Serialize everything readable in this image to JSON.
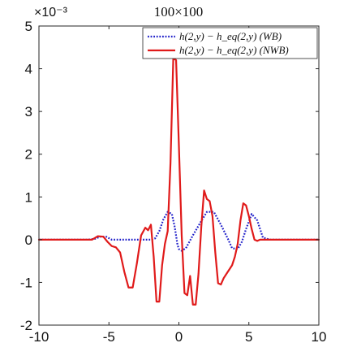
{
  "chart_data": {
    "type": "line",
    "title": "100×100",
    "xlabel": "",
    "ylabel": "",
    "y_exponent_label": "×10⁻³",
    "xlim": [
      -10,
      10
    ],
    "ylim": [
      -2,
      5
    ],
    "x_ticks": [
      -10,
      -5,
      0,
      5,
      10
    ],
    "y_ticks": [
      -2,
      -1,
      0,
      1,
      2,
      3,
      4,
      5
    ],
    "x_tick_labels": [
      "-10",
      "-5",
      "0",
      "5",
      "10"
    ],
    "y_tick_labels": [
      "-2",
      "-1",
      "0",
      "1",
      "2",
      "3",
      "4",
      "5"
    ],
    "grid": false,
    "legend_position": "top-right",
    "series": [
      {
        "name": "h(2,y) − h_eq(2,y) (WB)",
        "color": "#1f1fc9",
        "style": "dotted",
        "x": [
          -10,
          -6.5,
          -6,
          -5.6,
          -5.2,
          -4.8,
          -2.0,
          -1.7,
          -1.4,
          -1.1,
          -0.8,
          -0.5,
          -0.3,
          -0.1,
          0.0,
          0.2,
          0.5,
          1.0,
          1.5,
          2.0,
          2.5,
          3.0,
          3.5,
          3.8,
          4.2,
          4.5,
          4.8,
          5.2,
          5.6,
          6.0,
          6.5,
          10
        ],
        "y": [
          0,
          0,
          0.02,
          0.07,
          0.07,
          0.0,
          0.0,
          0.03,
          0.2,
          0.48,
          0.65,
          0.6,
          0.3,
          -0.12,
          -0.22,
          -0.26,
          -0.2,
          0.1,
          0.38,
          0.65,
          0.65,
          0.35,
          0.02,
          -0.2,
          -0.22,
          -0.05,
          0.25,
          0.6,
          0.45,
          0.05,
          0.0,
          0
        ]
      },
      {
        "name": "h(2,y) − h_eq(2,y) (NWB)",
        "color": "#e01a1a",
        "style": "solid",
        "x": [
          -10,
          -6.2,
          -5.8,
          -5.4,
          -5.1,
          -4.8,
          -4.5,
          -4.2,
          -3.9,
          -3.6,
          -3.3,
          -3.0,
          -2.7,
          -2.4,
          -2.2,
          -2.0,
          -1.8,
          -1.6,
          -1.4,
          -1.2,
          -1.0,
          -0.8,
          -0.6,
          -0.4,
          -0.2,
          0.0,
          0.2,
          0.4,
          0.6,
          0.8,
          1.0,
          1.2,
          1.4,
          1.6,
          1.8,
          2.0,
          2.2,
          2.4,
          2.6,
          2.8,
          3.0,
          3.2,
          3.4,
          3.6,
          3.8,
          4.0,
          4.2,
          4.4,
          4.6,
          4.8,
          5.0,
          5.2,
          5.4,
          5.6,
          5.8,
          6.0,
          6.5,
          10
        ],
        "y": [
          0,
          0,
          0.08,
          0.07,
          -0.05,
          -0.15,
          -0.18,
          -0.3,
          -0.75,
          -1.12,
          -1.12,
          -0.55,
          0.1,
          0.28,
          0.22,
          0.35,
          -0.4,
          -1.45,
          -1.45,
          -0.6,
          -0.1,
          0.2,
          1.8,
          4.25,
          4.2,
          2.2,
          0.1,
          -1.25,
          -1.3,
          -0.85,
          -1.52,
          -1.52,
          -0.8,
          0.3,
          1.15,
          0.95,
          0.9,
          0.55,
          -0.3,
          -1.02,
          -1.05,
          -0.9,
          -0.8,
          -0.7,
          -0.6,
          -0.4,
          -0.1,
          0.45,
          0.85,
          0.8,
          0.55,
          0.25,
          0.0,
          -0.03,
          0.0,
          0.0,
          0.0,
          0
        ]
      }
    ]
  }
}
